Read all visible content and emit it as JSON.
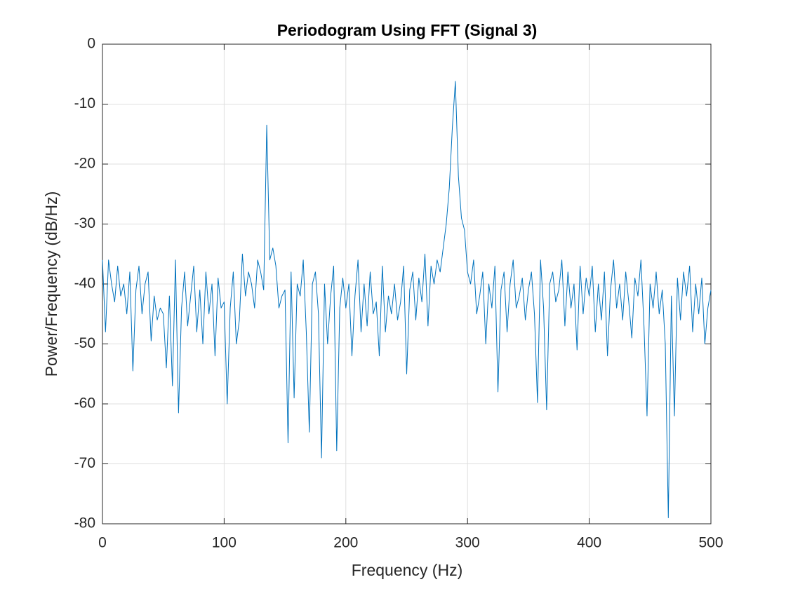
{
  "chart_data": {
    "type": "line",
    "title": "Periodogram Using FFT (Signal 3)",
    "x_label": "Frequency (Hz)",
    "y_label": "Power/Frequency (dB/Hz)",
    "xlim": [
      0,
      500
    ],
    "ylim": [
      -80,
      0
    ],
    "xticks": [
      0,
      100,
      200,
      300,
      400,
      500
    ],
    "yticks": [
      0,
      -10,
      -20,
      -30,
      -40,
      -50,
      -60,
      -70,
      -80
    ],
    "grid": true,
    "x": [
      0,
      2.5,
      5,
      7.5,
      10,
      12.5,
      15,
      17.5,
      20,
      22.5,
      25,
      27.5,
      30,
      32.5,
      35,
      37.5,
      40,
      42.5,
      45,
      47.5,
      50,
      52.5,
      55,
      57.5,
      60,
      62.5,
      65,
      67.5,
      70,
      72.5,
      75,
      77.5,
      80,
      82.5,
      85,
      87.5,
      90,
      92.5,
      95,
      97.5,
      100,
      102.5,
      105,
      107.5,
      110,
      112.5,
      115,
      117.5,
      120,
      122.5,
      125,
      127.5,
      130,
      132.5,
      135,
      137.5,
      140,
      142.5,
      145,
      147.5,
      150,
      152.5,
      155,
      157.5,
      160,
      162.5,
      165,
      167.5,
      170,
      172.5,
      175,
      177.5,
      180,
      182.5,
      185,
      187.5,
      190,
      192.5,
      195,
      197.5,
      200,
      202.5,
      205,
      207.5,
      210,
      212.5,
      215,
      217.5,
      220,
      222.5,
      225,
      227.5,
      230,
      232.5,
      235,
      237.5,
      240,
      242.5,
      245,
      247.5,
      250,
      252.5,
      255,
      257.5,
      260,
      262.5,
      265,
      267.5,
      270,
      272.5,
      275,
      277.5,
      280,
      282.5,
      285,
      287.5,
      290,
      292.5,
      295,
      297.5,
      300,
      302.5,
      305,
      307.5,
      310,
      312.5,
      315,
      317.5,
      320,
      322.5,
      325,
      327.5,
      330,
      332.5,
      335,
      337.5,
      340,
      342.5,
      345,
      347.5,
      350,
      352.5,
      355,
      357.5,
      360,
      362.5,
      365,
      367.5,
      370,
      372.5,
      375,
      377.5,
      380,
      382.5,
      385,
      387.5,
      390,
      392.5,
      395,
      397.5,
      400,
      402.5,
      405,
      407.5,
      410,
      412.5,
      415,
      417.5,
      420,
      422.5,
      425,
      427.5,
      430,
      432.5,
      435,
      437.5,
      440,
      442.5,
      445,
      447.5,
      450,
      452.5,
      455,
      457.5,
      460,
      462.5,
      465,
      467.5,
      470,
      472.5,
      475,
      477.5,
      480,
      482.5,
      485,
      487.5,
      490,
      492.5,
      495,
      497.5,
      500
    ],
    "series": [
      {
        "name": "Signal 3",
        "color": "#0072bd",
        "values": [
          -36,
          -48,
          -36,
          -40,
          -43,
          -37,
          -42,
          -40,
          -45,
          -38,
          -54.5,
          -41,
          -37,
          -45,
          -40,
          -38,
          -49.5,
          -42,
          -46,
          -44,
          -45,
          -54,
          -42,
          -57,
          -36,
          -61.5,
          -44,
          -38,
          -47,
          -42,
          -37,
          -48,
          -41,
          -50,
          -38,
          -45,
          -40,
          -52,
          -39,
          -44,
          -43,
          -60,
          -44,
          -38,
          -50,
          -46,
          -35,
          -42,
          -38,
          -40,
          -44,
          -36,
          -38,
          -41,
          -13.5,
          -36,
          -34,
          -37,
          -44,
          -42,
          -41,
          -66.5,
          -38,
          -59,
          -40,
          -42,
          -36,
          -48,
          -64.7,
          -40,
          -38,
          -45,
          -69,
          -40,
          -50,
          -42,
          -37,
          -67.8,
          -44,
          -39,
          -44,
          -40,
          -52,
          -42,
          -36,
          -48,
          -40,
          -47,
          -38,
          -45,
          -43,
          -52,
          -37,
          -48,
          -42,
          -45,
          -40,
          -46,
          -43,
          -37,
          -55,
          -41,
          -38,
          -46,
          -39,
          -43,
          -35,
          -47,
          -37,
          -40,
          -36,
          -38,
          -34,
          -30,
          -24,
          -14,
          -6.2,
          -22,
          -29,
          -31,
          -38,
          -40,
          -36,
          -45,
          -42,
          -38,
          -50,
          -40,
          -44,
          -37,
          -58,
          -41,
          -38,
          -48,
          -40,
          -36,
          -44,
          -42,
          -39,
          -46,
          -41,
          -38,
          -45,
          -59.8,
          -36,
          -44,
          -61,
          -40,
          -38,
          -43,
          -41,
          -36,
          -47,
          -38,
          -44,
          -40,
          -51,
          -37,
          -45,
          -39,
          -42,
          -37,
          -48,
          -40,
          -46,
          -38,
          -52,
          -41,
          -36,
          -44,
          -40,
          -46,
          -38,
          -43,
          -49,
          -39,
          -42,
          -36,
          -47,
          -62,
          -40,
          -44,
          -38,
          -45,
          -41,
          -50,
          -79,
          -42,
          -62,
          -39,
          -46,
          -38,
          -42,
          -37,
          -48,
          -40,
          -45,
          -39,
          -50,
          -44,
          -41
        ]
      }
    ]
  }
}
